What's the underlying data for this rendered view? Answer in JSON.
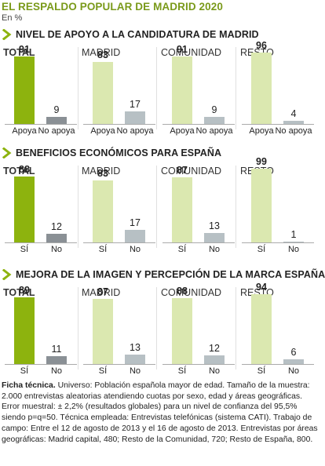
{
  "header": {
    "title": "EL RESPALDO POPULAR DE MADRID 2020",
    "subtitle": "En %"
  },
  "colors": {
    "accent_green": "#8db30e",
    "light_green": "#dbe8b0",
    "dark_gray": "#8a9095",
    "light_gray": "#b7c0c4",
    "title_green": "#7a9a1a"
  },
  "chart_data": [
    {
      "type": "bar",
      "title": "NIVEL DE APOYO A LA CANDIDATURA DE MADRID",
      "categories": [
        "Apoya",
        "No apoya"
      ],
      "ylim": [
        0,
        100
      ],
      "groups": [
        {
          "name": "TOTAL",
          "values": [
            91,
            9
          ]
        },
        {
          "name": "MADRID",
          "values": [
            83,
            17
          ]
        },
        {
          "name": "COMUNIDAD",
          "values": [
            91,
            9
          ]
        },
        {
          "name": "RESTO",
          "values": [
            96,
            4
          ]
        }
      ]
    },
    {
      "type": "bar",
      "title": "BENEFICIOS ECONÓMICOS PARA ESPAÑA",
      "categories": [
        "SÍ",
        "No"
      ],
      "ylim": [
        0,
        100
      ],
      "groups": [
        {
          "name": "TOTAL",
          "values": [
            88,
            12
          ]
        },
        {
          "name": "MADRID",
          "values": [
            83,
            17
          ]
        },
        {
          "name": "COMUNIDAD",
          "values": [
            87,
            13
          ]
        },
        {
          "name": "RESTO",
          "values": [
            99,
            1
          ]
        }
      ]
    },
    {
      "type": "bar",
      "title": "MEJORA DE LA IMAGEN Y PERCEPCIÓN DE LA MARCA ESPAÑA",
      "categories": [
        "SÍ",
        "No"
      ],
      "ylim": [
        0,
        100
      ],
      "groups": [
        {
          "name": "TOTAL",
          "values": [
            89,
            11
          ]
        },
        {
          "name": "MADRID",
          "values": [
            87,
            13
          ]
        },
        {
          "name": "COMUNIDAD",
          "values": [
            88,
            12
          ]
        },
        {
          "name": "RESTO",
          "values": [
            94,
            6
          ]
        }
      ]
    }
  ],
  "footnote": {
    "label": "Ficha técnica.",
    "text": " Universo: Población española mayor de edad. Tamaño de la muestra: 2.000 entrevistas aleatorias atendiendo cuotas por sexo, edad y áreas geográficas. Error muestral: ± 2,2% (resultados globales) para un nivel de confianza del 95,5% siendo p=q=50. Técnica empleada: Entrevistas telefónicas (sistema CATI). Trabajo de campo: Entre el 12 de agosto de 2013 y el 16 de agosto de 2013. Entrevistas por áreas geográficas: Madrid capital, 480; Resto de la Comunidad, 720; Resto de España, 800."
  }
}
